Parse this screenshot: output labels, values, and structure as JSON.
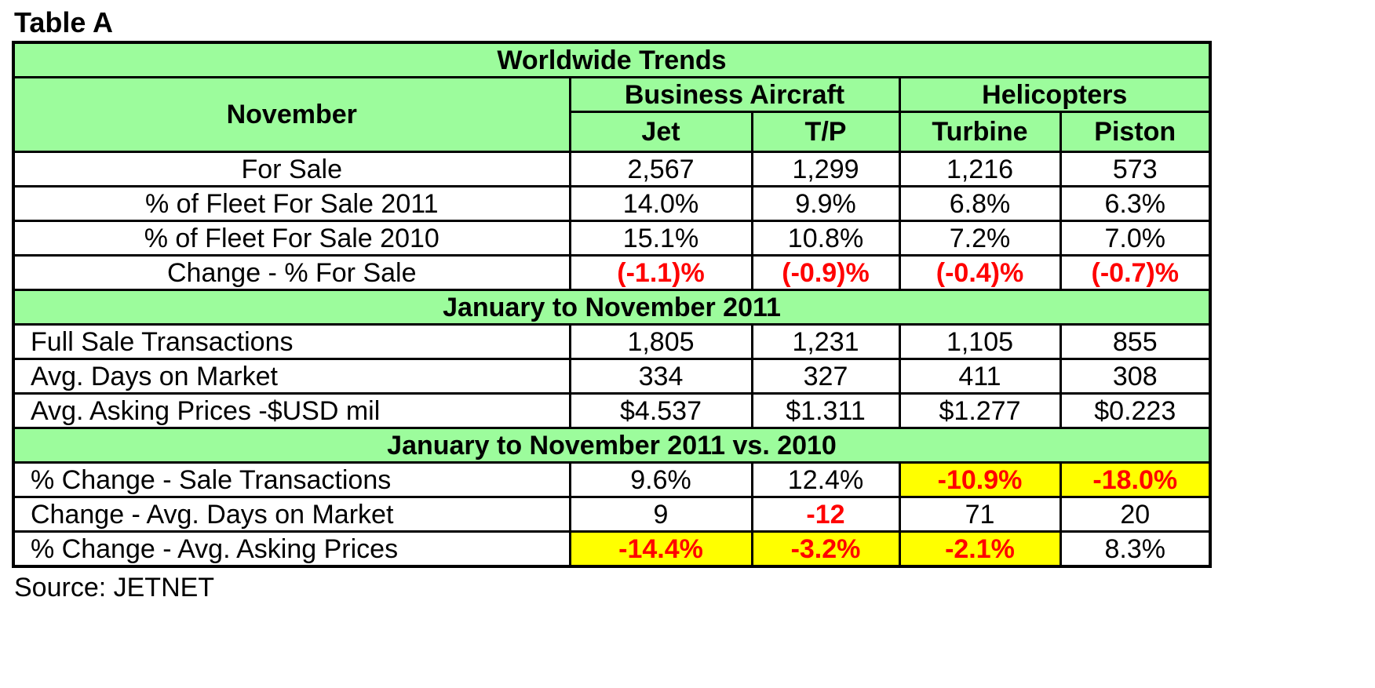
{
  "title": "Table A",
  "source": "Source: JETNET",
  "table": {
    "main_header": "Worldwide Trends",
    "row_header": "November",
    "groups": [
      "Business Aircraft",
      "Helicopters"
    ],
    "columns": [
      "Jet",
      "T/P",
      "Turbine",
      "Piston"
    ],
    "section1_rows": [
      {
        "label": "For Sale",
        "values": [
          "2,567",
          "1,299",
          "1,216",
          "573"
        ]
      },
      {
        "label": "% of Fleet For Sale 2011",
        "values": [
          "14.0%",
          "9.9%",
          "6.8%",
          "6.3%"
        ]
      },
      {
        "label": "% of Fleet For Sale 2010",
        "values": [
          "15.1%",
          "10.8%",
          "7.2%",
          "7.0%"
        ]
      },
      {
        "label": "Change - % For Sale",
        "values": [
          "(-1.1)%",
          "(-0.9)%",
          "(-0.4)%",
          "(-0.7)%"
        ]
      }
    ],
    "section2_title": "January to November 2011",
    "section2_rows": [
      {
        "label": "Full Sale Transactions",
        "values": [
          "1,805",
          "1,231",
          "1,105",
          "855"
        ]
      },
      {
        "label": "Avg. Days on Market",
        "values": [
          "334",
          "327",
          "411",
          "308"
        ]
      },
      {
        "label": "Avg. Asking Prices -$USD mil",
        "values": [
          "$4.537",
          "$1.311",
          "$1.277",
          "$0.223"
        ]
      }
    ],
    "section3_title": "January to November 2011 vs. 2010",
    "section3_rows": [
      {
        "label": "% Change  - Sale Transactions",
        "values": [
          "9.6%",
          "12.4%",
          "-10.9%",
          "-18.0%"
        ]
      },
      {
        "label": "Change -  Avg. Days on Market",
        "values": [
          "9",
          "-12",
          "71",
          "20"
        ]
      },
      {
        "label": "% Change - Avg. Asking Prices",
        "values": [
          "-14.4%",
          "-3.2%",
          "-2.1%",
          "8.3%"
        ]
      }
    ]
  },
  "colors": {
    "header_green": "#9cfc9c",
    "highlight_yellow": "#ffff00",
    "negative_red": "#ff0000"
  }
}
